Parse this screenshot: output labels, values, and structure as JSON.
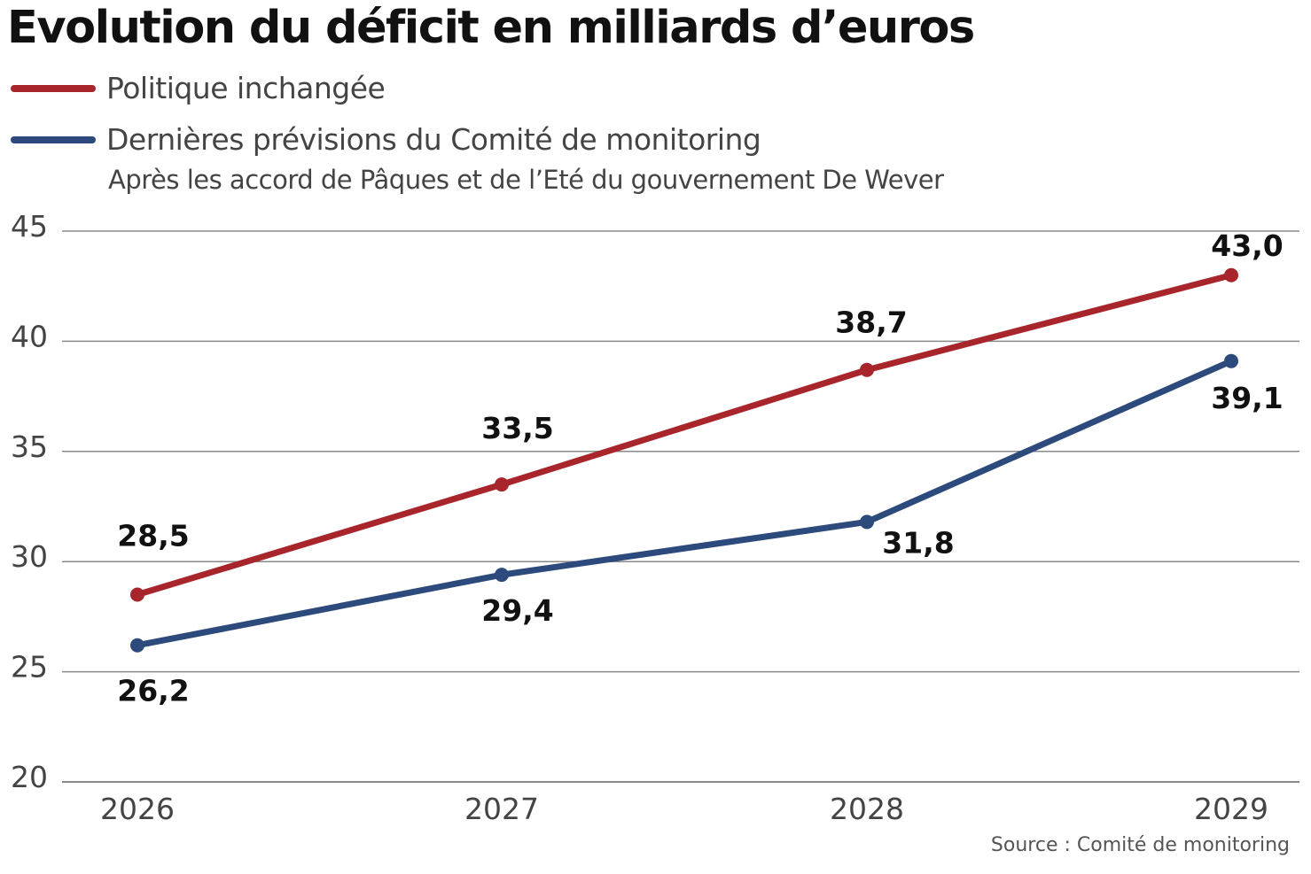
{
  "chart_data": {
    "type": "line",
    "title": "Evolution du déficit en milliards d’euros",
    "subtitle": "Après les accord de Pâques et de l’Eté du gouvernement De Wever",
    "source": "Source : Comité de monitoring",
    "categories": [
      "2026",
      "2027",
      "2028",
      "2029"
    ],
    "series": [
      {
        "name": "Politique inchangée",
        "color": "#a8262b",
        "values": [
          28.5,
          33.5,
          38.7,
          43.0
        ],
        "labels": [
          "28,5",
          "33,5",
          "38,7",
          "43,0"
        ]
      },
      {
        "name": "Dernières prévisions du Comité de monitoring",
        "color": "#2c4a7c",
        "values": [
          26.2,
          29.4,
          31.8,
          39.1
        ],
        "labels": [
          "26,2",
          "29,4",
          "31,8",
          "39,1"
        ]
      }
    ],
    "ylim": [
      20,
      45
    ],
    "yticks": [
      "20",
      "25",
      "30",
      "35",
      "40",
      "45"
    ],
    "grid": true,
    "legend": "top-left"
  }
}
